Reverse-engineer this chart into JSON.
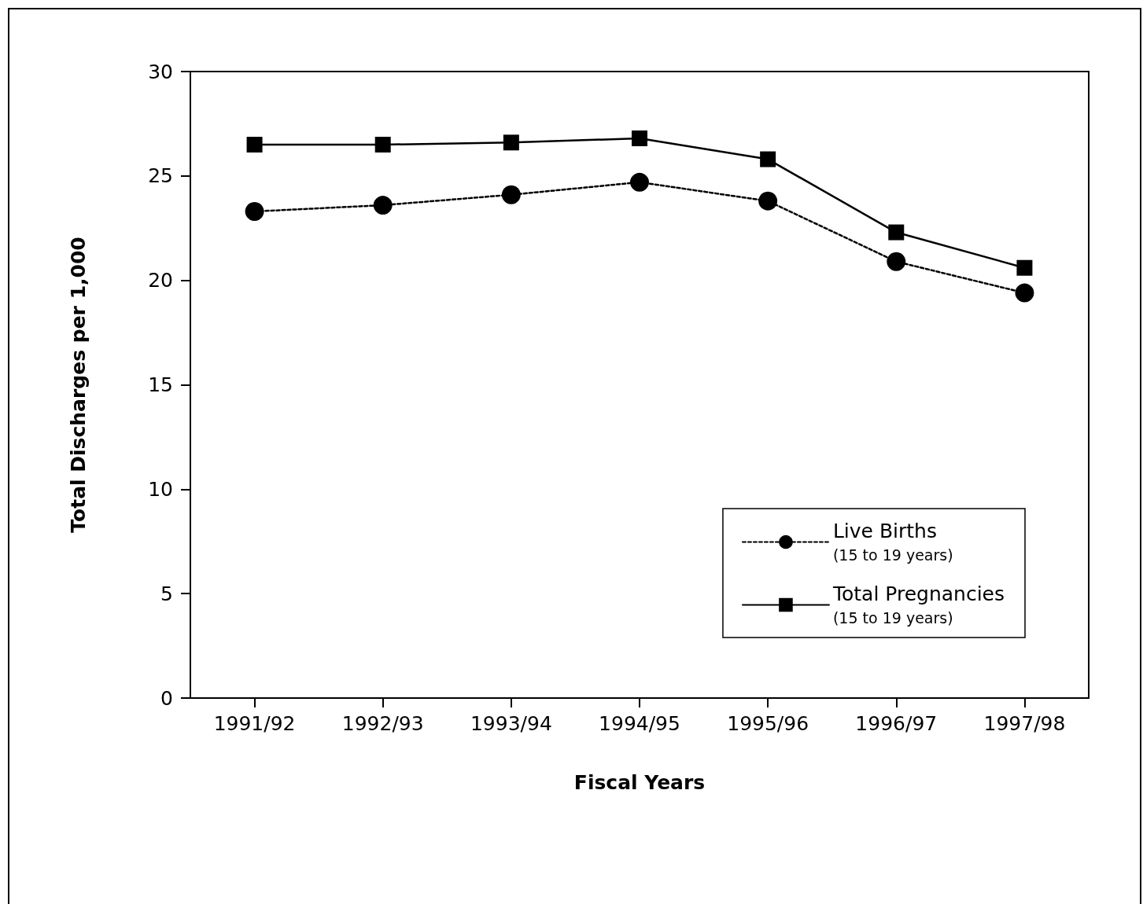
{
  "chart_data": {
    "type": "line",
    "xlabel": "Fiscal Years",
    "ylabel": "Total Discharges per 1,000",
    "categories": [
      "1991/92",
      "1992/93",
      "1993/94",
      "1994/95",
      "1995/96",
      "1996/97",
      "1997/98"
    ],
    "series": [
      {
        "name": "Live Births\n(15 to 19 years)",
        "color": "#000000",
        "marker": "circle",
        "line_style": "dotted",
        "values": [
          23.3,
          23.6,
          24.1,
          24.7,
          23.8,
          20.9,
          19.4
        ]
      },
      {
        "name": "Total Pregnancies\n(15 to 19 years)",
        "color": "#000000",
        "marker": "square",
        "line_style": "solid",
        "values": [
          26.5,
          26.5,
          26.6,
          26.8,
          25.8,
          22.3,
          20.6
        ]
      }
    ],
    "ylim": [
      0,
      30
    ],
    "yticks": [
      0,
      5,
      10,
      15,
      20,
      25,
      30
    ],
    "grid": false,
    "legend": "bottom right"
  }
}
